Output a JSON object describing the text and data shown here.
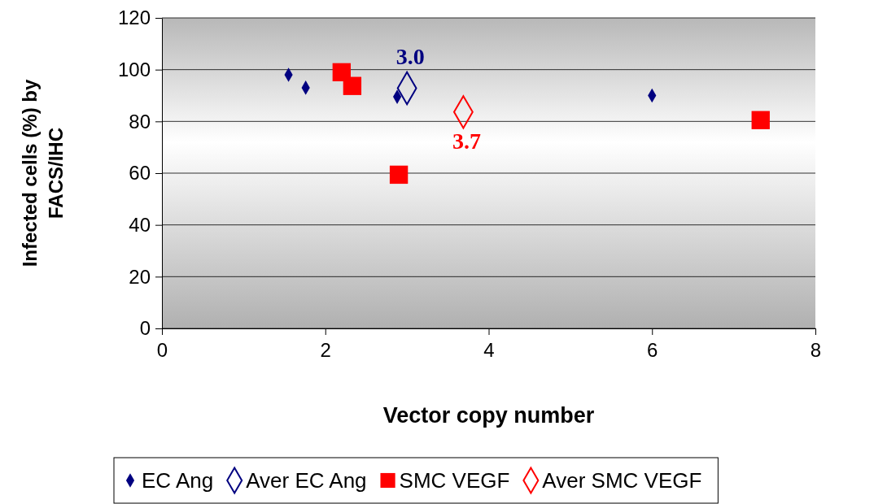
{
  "chart_data": {
    "type": "scatter",
    "xlabel": "Vector copy number",
    "ylabel": "Infected cells (%) by FACS/IHC",
    "xlim": [
      0,
      8
    ],
    "xticks": [
      0,
      2,
      4,
      6,
      8
    ],
    "ylim": [
      0,
      120
    ],
    "yticks": [
      0,
      20,
      40,
      60,
      80,
      100,
      120
    ],
    "grid": "y",
    "legend": "bottom",
    "series": [
      {
        "name": "EC Ang",
        "color": "#000080",
        "marker": "diamond",
        "x": [
          1.55,
          1.76,
          2.88,
          6.0
        ],
        "values": [
          98,
          93,
          89.5,
          90
        ]
      },
      {
        "name": "Aver EC Ang",
        "color": "#000080",
        "marker": "diamond-open",
        "x": [
          3.0
        ],
        "values": [
          92.8
        ]
      },
      {
        "name": "SMC VEGF",
        "color": "#ff0000",
        "marker": "square",
        "x": [
          2.2,
          2.33,
          2.9,
          7.33
        ],
        "values": [
          99,
          93.7,
          59.4,
          80.5
        ]
      },
      {
        "name": "Aver SMC VEGF",
        "color": "#ff0000",
        "marker": "diamond-open",
        "x": [
          3.69
        ],
        "values": [
          83.6
        ]
      }
    ],
    "annotations": [
      {
        "text": "3.0",
        "x": 3.0,
        "y": 92.8
      },
      {
        "text": "3.7",
        "x": 3.69,
        "y": 83.6
      }
    ]
  }
}
